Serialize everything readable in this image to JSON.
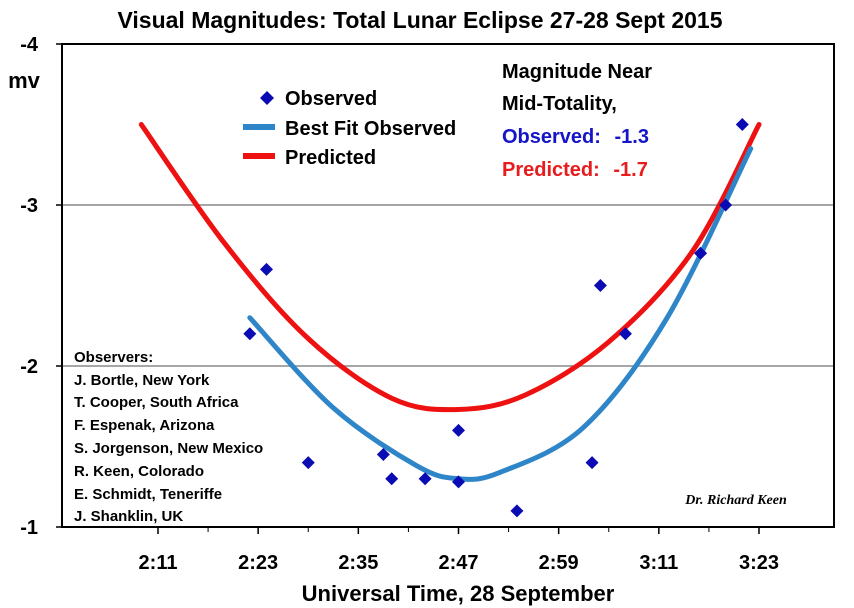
{
  "chart_data": {
    "type": "scatter",
    "title": "Visual Magnitudes: Total Lunar Eclipse 27-28 Sept 2015",
    "xlabel": "Universal Time, 28 September",
    "ylabel": "mv",
    "x_ticks": [
      "2:11",
      "2:23",
      "2:35",
      "2:47",
      "2:59",
      "3:11",
      "3:23"
    ],
    "y_ticks": [
      "-4",
      "-3",
      "-2",
      "-1"
    ],
    "ylim": [
      -1,
      -4
    ],
    "grid": "horizontal",
    "legend_position": "top-left",
    "series": [
      {
        "name": "Observed",
        "marker": "diamond",
        "color": "#0b0bb4",
        "x": [
          "2:22",
          "2:24",
          "2:29",
          "2:38",
          "2:39",
          "2:43",
          "2:47",
          "2:47",
          "2:54",
          "3:03",
          "3:04",
          "3:07",
          "3:16",
          "3:19",
          "3:21"
        ],
        "y": [
          -2.2,
          -2.6,
          -1.4,
          -1.45,
          -1.3,
          -1.3,
          -1.6,
          -1.28,
          -1.1,
          -1.4,
          -2.5,
          -2.2,
          -2.7,
          -3.0,
          -3.5
        ]
      },
      {
        "name": "Best Fit Observed",
        "type": "line",
        "color": "#2e86c8",
        "x": [
          "2:22",
          "2:32",
          "2:42",
          "2:47",
          "2:52",
          "3:02",
          "3:12",
          "3:22"
        ],
        "y": [
          -2.3,
          -1.74,
          -1.38,
          -1.3,
          -1.34,
          -1.62,
          -2.3,
          -3.35
        ]
      },
      {
        "name": "Predicted",
        "type": "line",
        "color": "#ee1111",
        "x": [
          "2:09",
          "2:19",
          "2:29",
          "2:39",
          "2:47",
          "2:55",
          "3:05",
          "3:15",
          "3:23"
        ],
        "y": [
          -3.5,
          -2.76,
          -2.17,
          -1.8,
          -1.73,
          -1.82,
          -2.15,
          -2.71,
          -3.5
        ]
      }
    ],
    "annotations": {
      "mag_heading_1": "Magnitude Near",
      "mag_heading_2": "Mid-Totality,",
      "observed_label": "Observed:",
      "observed_value": "-1.3",
      "predicted_label": "Predicted:",
      "predicted_value": "-1.7",
      "observers_heading": "Observers:",
      "observers": [
        "J. Bortle, New York",
        "T. Cooper, South Africa",
        "F. Espenak, Arizona",
        "S. Jorgenson, New Mexico",
        "R. Keen, Colorado",
        "E. Schmidt, Teneriffe",
        "J. Shanklin, UK"
      ],
      "credit": "Dr. Richard Keen"
    },
    "colors": {
      "observed_text": "#1414c8",
      "predicted_text": "#e81c1c"
    }
  }
}
